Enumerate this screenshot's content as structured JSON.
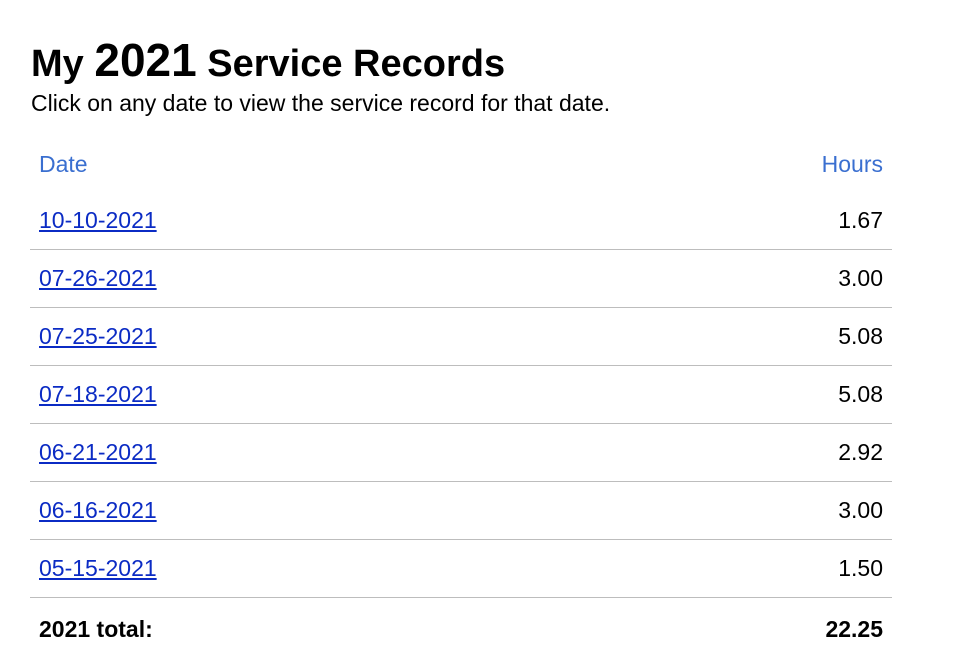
{
  "title": {
    "prefix": "My",
    "year": "2021",
    "suffix": "Service Records"
  },
  "subtitle": "Click on any date to view the service record for that date.",
  "table": {
    "headers": {
      "date": "Date",
      "hours": "Hours"
    },
    "rows": [
      {
        "date": "10-10-2021",
        "hours": "1.67"
      },
      {
        "date": "07-26-2021",
        "hours": "3.00"
      },
      {
        "date": "07-25-2021",
        "hours": "5.08"
      },
      {
        "date": "07-18-2021",
        "hours": "5.08"
      },
      {
        "date": "06-21-2021",
        "hours": "2.92"
      },
      {
        "date": "06-16-2021",
        "hours": "3.00"
      },
      {
        "date": "05-15-2021",
        "hours": "1.50"
      }
    ],
    "total": {
      "label": "2021 total:",
      "hours": "22.25"
    }
  },
  "colors": {
    "header": "#3a6fd0",
    "link": "#0b2bc4",
    "divider": "#bdbdbd"
  }
}
